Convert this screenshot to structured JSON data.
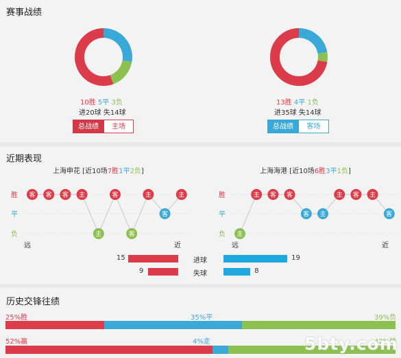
{
  "colors": {
    "win": "#dc3c4a",
    "draw": "#3aa9d8",
    "loss": "#8cc152",
    "team_b": "#1ea7e1"
  },
  "section1": {
    "title": "赛事战绩",
    "left": {
      "wins": "10胜",
      "draws": "5平",
      "losses": "3负",
      "goals": "进20球 失14球",
      "tab_active": "总战绩",
      "tab_other": "主场",
      "chart_data": {
        "type": "pie",
        "labels": [
          "胜",
          "平",
          "负"
        ],
        "values": [
          10,
          5,
          3
        ]
      }
    },
    "right": {
      "wins": "13胜",
      "draws": "4平",
      "losses": "1负",
      "goals": "进35球 失14球",
      "tab_active": "总战绩",
      "tab_other": "客场",
      "chart_data": {
        "type": "pie",
        "labels": [
          "胜",
          "平",
          "负"
        ],
        "values": [
          13,
          4,
          1
        ]
      }
    }
  },
  "section2": {
    "title": "近期表现",
    "left": {
      "team": "上海申花",
      "rec_open": " [近10场",
      "wins": "7胜",
      "draws": "1平",
      "losses": "2负",
      "rec_close": "]"
    },
    "right": {
      "team": "上海海港",
      "rec_open": " [近10场",
      "wins": "6胜",
      "draws": "3平",
      "losses": "1负",
      "rec_close": "]"
    },
    "y_labels": {
      "win": "胜",
      "draw": "平",
      "loss": "负"
    },
    "x_labels": {
      "far": "远",
      "near": "近"
    },
    "left_form": [
      {
        "r": "W",
        "m": "客"
      },
      {
        "r": "W",
        "m": "客"
      },
      {
        "r": "W",
        "m": "客"
      },
      {
        "r": "W",
        "m": "主"
      },
      {
        "r": "L",
        "m": "主"
      },
      {
        "r": "W",
        "m": "客"
      },
      {
        "r": "L",
        "m": "客"
      },
      {
        "r": "W",
        "m": "主"
      },
      {
        "r": "D",
        "m": "客"
      },
      {
        "r": "W",
        "m": "主"
      }
    ],
    "right_form": [
      {
        "r": "L",
        "m": "主"
      },
      {
        "r": "W",
        "m": "主"
      },
      {
        "r": "W",
        "m": "客"
      },
      {
        "r": "W",
        "m": "客"
      },
      {
        "r": "D",
        "m": "客"
      },
      {
        "r": "D",
        "m": "主"
      },
      {
        "r": "W",
        "m": "主"
      },
      {
        "r": "W",
        "m": "客"
      },
      {
        "r": "W",
        "m": "主"
      },
      {
        "r": "D",
        "m": "客"
      }
    ],
    "scored_label": "进球",
    "conceded_label": "失球",
    "chart_data": {
      "type": "bar",
      "categories": [
        "进球",
        "失球"
      ],
      "series": [
        {
          "name": "上海申花",
          "values": [
            15,
            9
          ]
        },
        {
          "name": "上海海港",
          "values": [
            19,
            8
          ]
        }
      ]
    },
    "left_scored": "15",
    "left_conceded": "9",
    "right_scored": "19",
    "right_conceded": "8"
  },
  "section3": {
    "title": "历史交锋往绩",
    "row1": {
      "win_label": "25%胜",
      "draw_label": "35%平",
      "loss_label": "39%负"
    },
    "row2": {
      "win_label": "52%赢",
      "draw_label": "4%走",
      "loss_label": "42%输"
    },
    "chart_data": {
      "type": "bar",
      "categories": [
        "胜平负",
        "赢走输"
      ],
      "series": [
        {
          "name": "胜",
          "values": [
            25,
            52
          ]
        },
        {
          "name": "平",
          "values": [
            35,
            4
          ]
        },
        {
          "name": "负",
          "values": [
            39,
            42
          ]
        }
      ]
    }
  },
  "watermark": "5bty.com"
}
